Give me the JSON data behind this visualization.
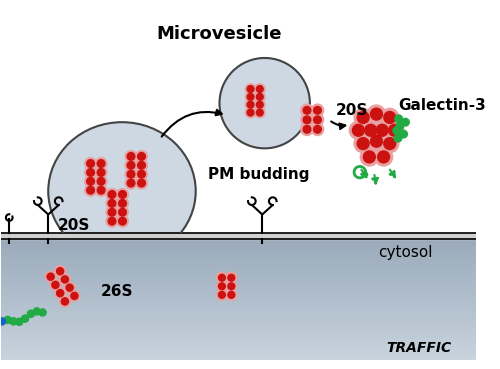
{
  "bg_color": "#ffffff",
  "cytosol_color": "#c8d4de",
  "cell_color": "#c8d4e0",
  "cell_border": "#444444",
  "mv_color": "#c8d4e0",
  "mv_border": "#444444",
  "proteasome_red": "#cc1111",
  "proteasome_pink": "#e8a0a0",
  "galectin_green": "#22aa44",
  "arrow_color": "#111111",
  "text_microvesicle": "Microvesicle",
  "text_20S_mv": "20S",
  "text_pm_budding": "PM budding",
  "text_galectin": "Galectin-3",
  "text_cytosol": "cytosol",
  "text_26S": "26S",
  "text_20S_cell": "20S",
  "text_traffic": "TRAFFIC",
  "figsize": [
    5.0,
    3.69
  ],
  "dpi": 100
}
